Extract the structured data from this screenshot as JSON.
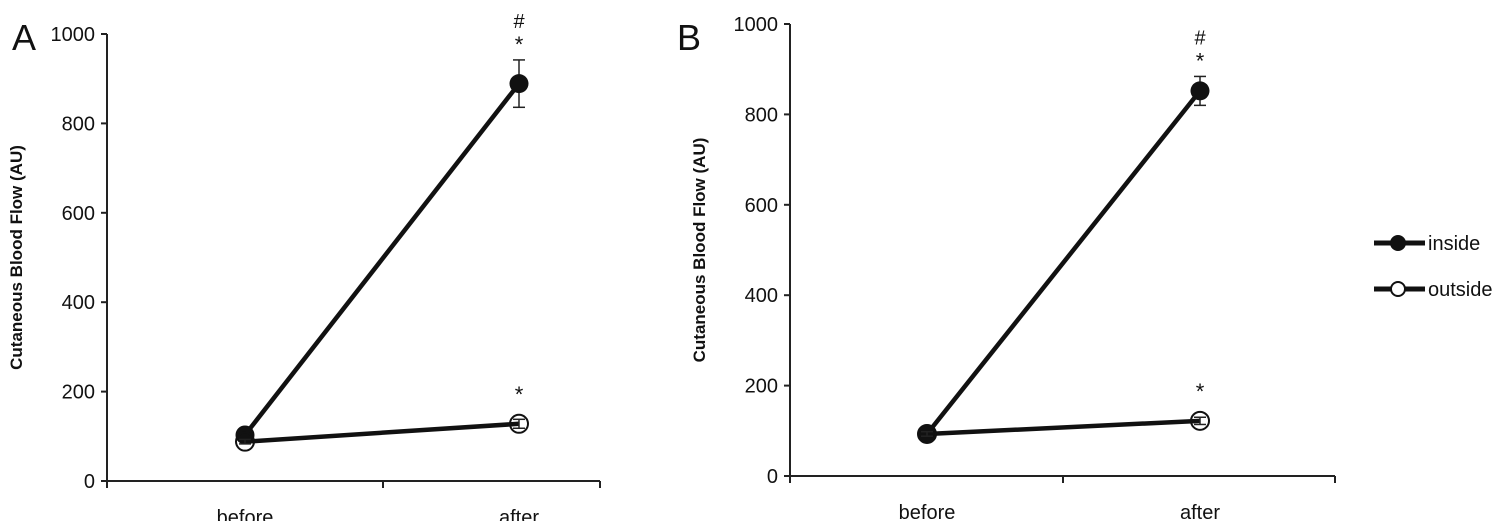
{
  "chart_data": [
    {
      "type": "line",
      "panel_label": "A",
      "title": "",
      "xlabel": "",
      "ylabel": "Cutaneous Blood Flow (AU)",
      "categories": [
        "before",
        "after"
      ],
      "ylim": [
        0,
        1000
      ],
      "yticks": [
        "0",
        "200",
        "400",
        "600",
        "800",
        "1000"
      ],
      "grid": false,
      "series": [
        {
          "name": "inside",
          "marker": "filled-circle",
          "values": [
            103,
            889
          ],
          "error": [
            8,
            53
          ],
          "annotations": [
            "",
            "*\n#"
          ]
        },
        {
          "name": "outside",
          "marker": "open-circle",
          "values": [
            88,
            128
          ],
          "error": [
            5,
            10
          ],
          "annotations": [
            "",
            "*"
          ]
        }
      ],
      "annotation_symbols": {
        "inside_after_star": "*",
        "inside_after_hash": "#",
        "outside_after_star": "*"
      }
    },
    {
      "type": "line",
      "panel_label": "B",
      "title": "",
      "xlabel": "",
      "ylabel": "Cutaneous Blood Flow (AU)",
      "categories": [
        "before",
        "after"
      ],
      "ylim": [
        0,
        1000
      ],
      "yticks": [
        "0",
        "200",
        "400",
        "600",
        "800",
        "1000"
      ],
      "grid": false,
      "series": [
        {
          "name": "inside",
          "marker": "filled-circle",
          "values": [
            93,
            852
          ],
          "error": [
            6,
            32
          ],
          "annotations": [
            "",
            "*\n#"
          ]
        },
        {
          "name": "outside",
          "marker": "open-circle",
          "values": [
            93,
            122
          ],
          "error": [
            5,
            8
          ],
          "annotations": [
            "",
            "*"
          ]
        }
      ],
      "annotation_symbols": {
        "inside_after_star": "*",
        "inside_after_hash": "#",
        "outside_after_star": "*"
      }
    }
  ],
  "legend": {
    "placement": "right",
    "items": [
      "inside",
      "outside"
    ]
  }
}
